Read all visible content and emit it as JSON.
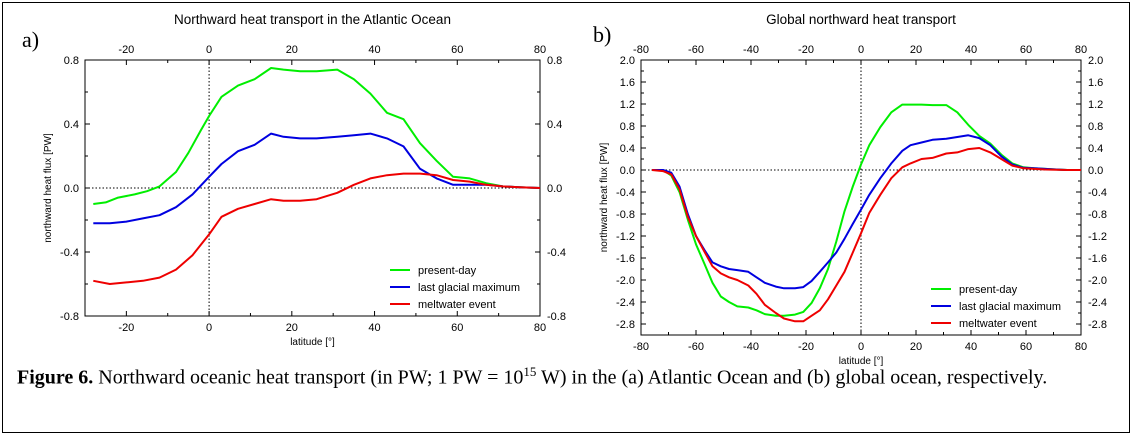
{
  "chart_data": [
    {
      "type": "line",
      "panel_label": "a)",
      "title": "Northward heat transport in the Atlantic Ocean",
      "xlabel": "latitude [°]",
      "ylabel": "northward heat flux [PW]",
      "xlim": [
        -30,
        80
      ],
      "ylim": [
        -0.8,
        0.8
      ],
      "xticks": [
        -20,
        0,
        20,
        40,
        60,
        80
      ],
      "yticks": [
        -0.8,
        -0.4,
        0.0,
        0.4,
        0.8
      ],
      "ytick_labels": [
        "-0.8",
        "-0.4",
        "0.0",
        "0.4",
        "0.8"
      ],
      "zero_lines": true,
      "legend_position": "bottom-right",
      "series": [
        {
          "name": "present-day",
          "color": "#00ee00",
          "x": [
            -28,
            -25,
            -22,
            -18,
            -15,
            -12,
            -8,
            -5,
            -2,
            0,
            3,
            7,
            11,
            15,
            18,
            22,
            26,
            31,
            35,
            39,
            43,
            47,
            51,
            55,
            59,
            63,
            67,
            71,
            75,
            80
          ],
          "y": [
            -0.1,
            -0.09,
            -0.06,
            -0.04,
            -0.02,
            0.01,
            0.1,
            0.22,
            0.36,
            0.45,
            0.57,
            0.64,
            0.68,
            0.75,
            0.74,
            0.73,
            0.73,
            0.74,
            0.68,
            0.59,
            0.47,
            0.43,
            0.28,
            0.17,
            0.07,
            0.06,
            0.03,
            0.01,
            0.005,
            0.0
          ]
        },
        {
          "name": "last glacial maximum",
          "color": "#0000e0",
          "x": [
            -28,
            -24,
            -20,
            -16,
            -12,
            -8,
            -4,
            0,
            3,
            7,
            11,
            15,
            18,
            22,
            26,
            31,
            35,
            39,
            43,
            47,
            51,
            55,
            59,
            63,
            67,
            71,
            75,
            80
          ],
          "y": [
            -0.22,
            -0.22,
            -0.21,
            -0.19,
            -0.17,
            -0.12,
            -0.04,
            0.07,
            0.15,
            0.23,
            0.27,
            0.34,
            0.32,
            0.31,
            0.31,
            0.32,
            0.33,
            0.34,
            0.31,
            0.26,
            0.12,
            0.06,
            0.02,
            0.02,
            0.02,
            0.01,
            0.005,
            0.0
          ]
        },
        {
          "name": "meltwater event",
          "color": "#ee0000",
          "x": [
            -28,
            -24,
            -20,
            -16,
            -12,
            -8,
            -4,
            0,
            3,
            7,
            11,
            15,
            18,
            22,
            26,
            31,
            35,
            39,
            43,
            47,
            51,
            55,
            59,
            63,
            67,
            71,
            75,
            80
          ],
          "y": [
            -0.58,
            -0.6,
            -0.59,
            -0.58,
            -0.56,
            -0.51,
            -0.42,
            -0.29,
            -0.18,
            -0.13,
            -0.1,
            -0.07,
            -0.08,
            -0.08,
            -0.07,
            -0.03,
            0.02,
            0.06,
            0.08,
            0.09,
            0.09,
            0.08,
            0.05,
            0.04,
            0.02,
            0.01,
            0.005,
            0.0
          ]
        }
      ]
    },
    {
      "type": "line",
      "panel_label": "b)",
      "title": "Global northward heat transport",
      "xlabel": "latitude [°]",
      "ylabel": "northward heat flux [PW]",
      "xlim": [
        -80,
        80
      ],
      "ylim": [
        -3.0,
        2.0
      ],
      "xticks": [
        -80,
        -60,
        -40,
        -20,
        0,
        20,
        40,
        60,
        80
      ],
      "yticks": [
        -2.8,
        -2.4,
        -2.0,
        -1.6,
        -1.2,
        -0.8,
        -0.4,
        0.0,
        0.4,
        0.8,
        1.2,
        1.6,
        2.0
      ],
      "ytick_labels": [
        "-2.8",
        "-2.4",
        "-2.0",
        "-1.6",
        "-1.2",
        "-0.8",
        "-0.4",
        "0.0",
        "0.4",
        "0.8",
        "1.2",
        "1.6",
        "2.0"
      ],
      "zero_lines": true,
      "legend_position": "bottom-right",
      "series": [
        {
          "name": "present-day",
          "color": "#00ee00",
          "x": [
            -76,
            -72,
            -69,
            -66,
            -63,
            -60,
            -57,
            -54,
            -51,
            -48,
            -45,
            -41,
            -38,
            -35,
            -31,
            -28,
            -24,
            -21,
            -18,
            -15,
            -12,
            -9,
            -6,
            -3,
            0,
            3,
            7,
            11,
            15,
            18,
            22,
            26,
            31,
            35,
            39,
            43,
            47,
            51,
            55,
            59,
            63,
            67,
            71,
            75,
            80
          ],
          "y": [
            0.0,
            0.0,
            -0.1,
            -0.4,
            -0.9,
            -1.35,
            -1.7,
            -2.05,
            -2.3,
            -2.4,
            -2.48,
            -2.5,
            -2.55,
            -2.62,
            -2.65,
            -2.65,
            -2.63,
            -2.58,
            -2.42,
            -2.15,
            -1.8,
            -1.3,
            -0.75,
            -0.3,
            0.1,
            0.45,
            0.78,
            1.05,
            1.19,
            1.19,
            1.19,
            1.18,
            1.18,
            1.05,
            0.82,
            0.62,
            0.48,
            0.28,
            0.12,
            0.05,
            0.03,
            0.02,
            0.01,
            0.0,
            0.0
          ]
        },
        {
          "name": "last glacial maximum",
          "color": "#0000e0",
          "x": [
            -76,
            -72,
            -69,
            -66,
            -63,
            -60,
            -57,
            -54,
            -51,
            -48,
            -45,
            -41,
            -38,
            -35,
            -31,
            -28,
            -24,
            -21,
            -18,
            -15,
            -12,
            -9,
            -6,
            -3,
            0,
            3,
            7,
            11,
            15,
            18,
            22,
            26,
            31,
            35,
            39,
            43,
            47,
            51,
            55,
            59,
            63,
            67,
            71,
            75,
            80
          ],
          "y": [
            0.0,
            0.0,
            -0.05,
            -0.3,
            -0.8,
            -1.2,
            -1.45,
            -1.68,
            -1.75,
            -1.8,
            -1.82,
            -1.85,
            -1.95,
            -2.05,
            -2.12,
            -2.15,
            -2.15,
            -2.13,
            -2.02,
            -1.85,
            -1.68,
            -1.5,
            -1.25,
            -0.98,
            -0.72,
            -0.45,
            -0.15,
            0.12,
            0.35,
            0.45,
            0.5,
            0.55,
            0.57,
            0.6,
            0.63,
            0.58,
            0.45,
            0.25,
            0.1,
            0.04,
            0.03,
            0.02,
            0.01,
            0.0,
            0.0
          ]
        },
        {
          "name": "meltwater event",
          "color": "#ee0000",
          "x": [
            -76,
            -72,
            -69,
            -66,
            -63,
            -60,
            -57,
            -54,
            -51,
            -48,
            -45,
            -41,
            -38,
            -35,
            -31,
            -28,
            -24,
            -21,
            -18,
            -15,
            -12,
            -9,
            -6,
            -3,
            0,
            3,
            7,
            11,
            15,
            18,
            22,
            26,
            31,
            35,
            39,
            43,
            47,
            51,
            55,
            59,
            63,
            67,
            71,
            75,
            80
          ],
          "y": [
            0.0,
            -0.02,
            -0.08,
            -0.35,
            -0.85,
            -1.2,
            -1.48,
            -1.75,
            -1.88,
            -1.95,
            -2.0,
            -2.1,
            -2.25,
            -2.45,
            -2.6,
            -2.7,
            -2.75,
            -2.75,
            -2.65,
            -2.55,
            -2.35,
            -2.1,
            -1.85,
            -1.5,
            -1.15,
            -0.78,
            -0.45,
            -0.15,
            0.05,
            0.12,
            0.2,
            0.22,
            0.3,
            0.32,
            0.38,
            0.4,
            0.32,
            0.2,
            0.08,
            0.03,
            0.02,
            0.01,
            0.005,
            0.0,
            0.0
          ]
        }
      ]
    }
  ],
  "caption": {
    "label": "Figure 6.",
    "text_1": " Northward oceanic heat transport (in PW; 1 PW = 10",
    "superscript": "15",
    "text_2": " W) in the (a) Atlantic Ocean and (b) global ocean, respectively."
  }
}
